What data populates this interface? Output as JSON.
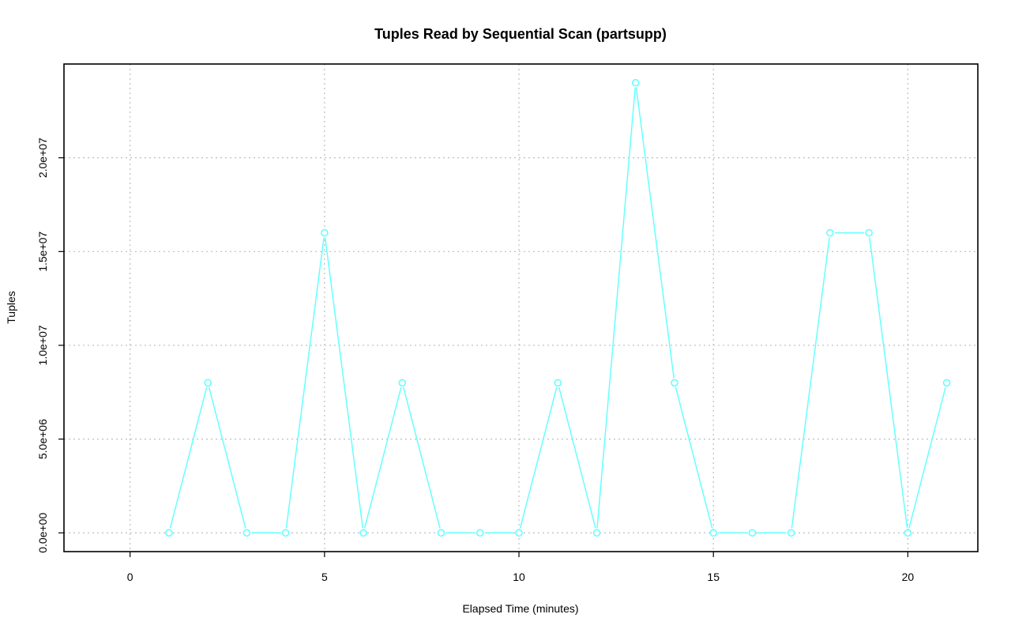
{
  "chart_data": {
    "type": "line",
    "title": "Tuples Read by Sequential Scan (partsupp)",
    "xlabel": "Elapsed Time (minutes)",
    "ylabel": "Tuples",
    "xlim": [
      -1.7,
      21.8
    ],
    "ylim": [
      -1000000,
      25000000
    ],
    "x_ticks": [
      0,
      5,
      10,
      15,
      20
    ],
    "x_tick_labels": [
      "0",
      "5",
      "10",
      "15",
      "20"
    ],
    "y_ticks": [
      0,
      5000000,
      10000000,
      15000000,
      20000000
    ],
    "y_tick_labels": [
      "0.0e+00",
      "5.0e+06",
      "1.0e+07",
      "1.5e+07",
      "2.0e+07"
    ],
    "grid": true,
    "series": [
      {
        "color": "#66ffff",
        "x": [
          1,
          2,
          3,
          4,
          5,
          6,
          7,
          8,
          9,
          10,
          11,
          12,
          13,
          14,
          15,
          16,
          17,
          18,
          19,
          20,
          21
        ],
        "y": [
          0,
          8000000,
          0,
          0,
          16000000,
          0,
          8000000,
          0,
          0,
          0,
          8000000,
          0,
          24000000,
          8000000,
          0,
          0,
          0,
          16000000,
          16000000,
          0,
          8000000
        ]
      }
    ]
  }
}
